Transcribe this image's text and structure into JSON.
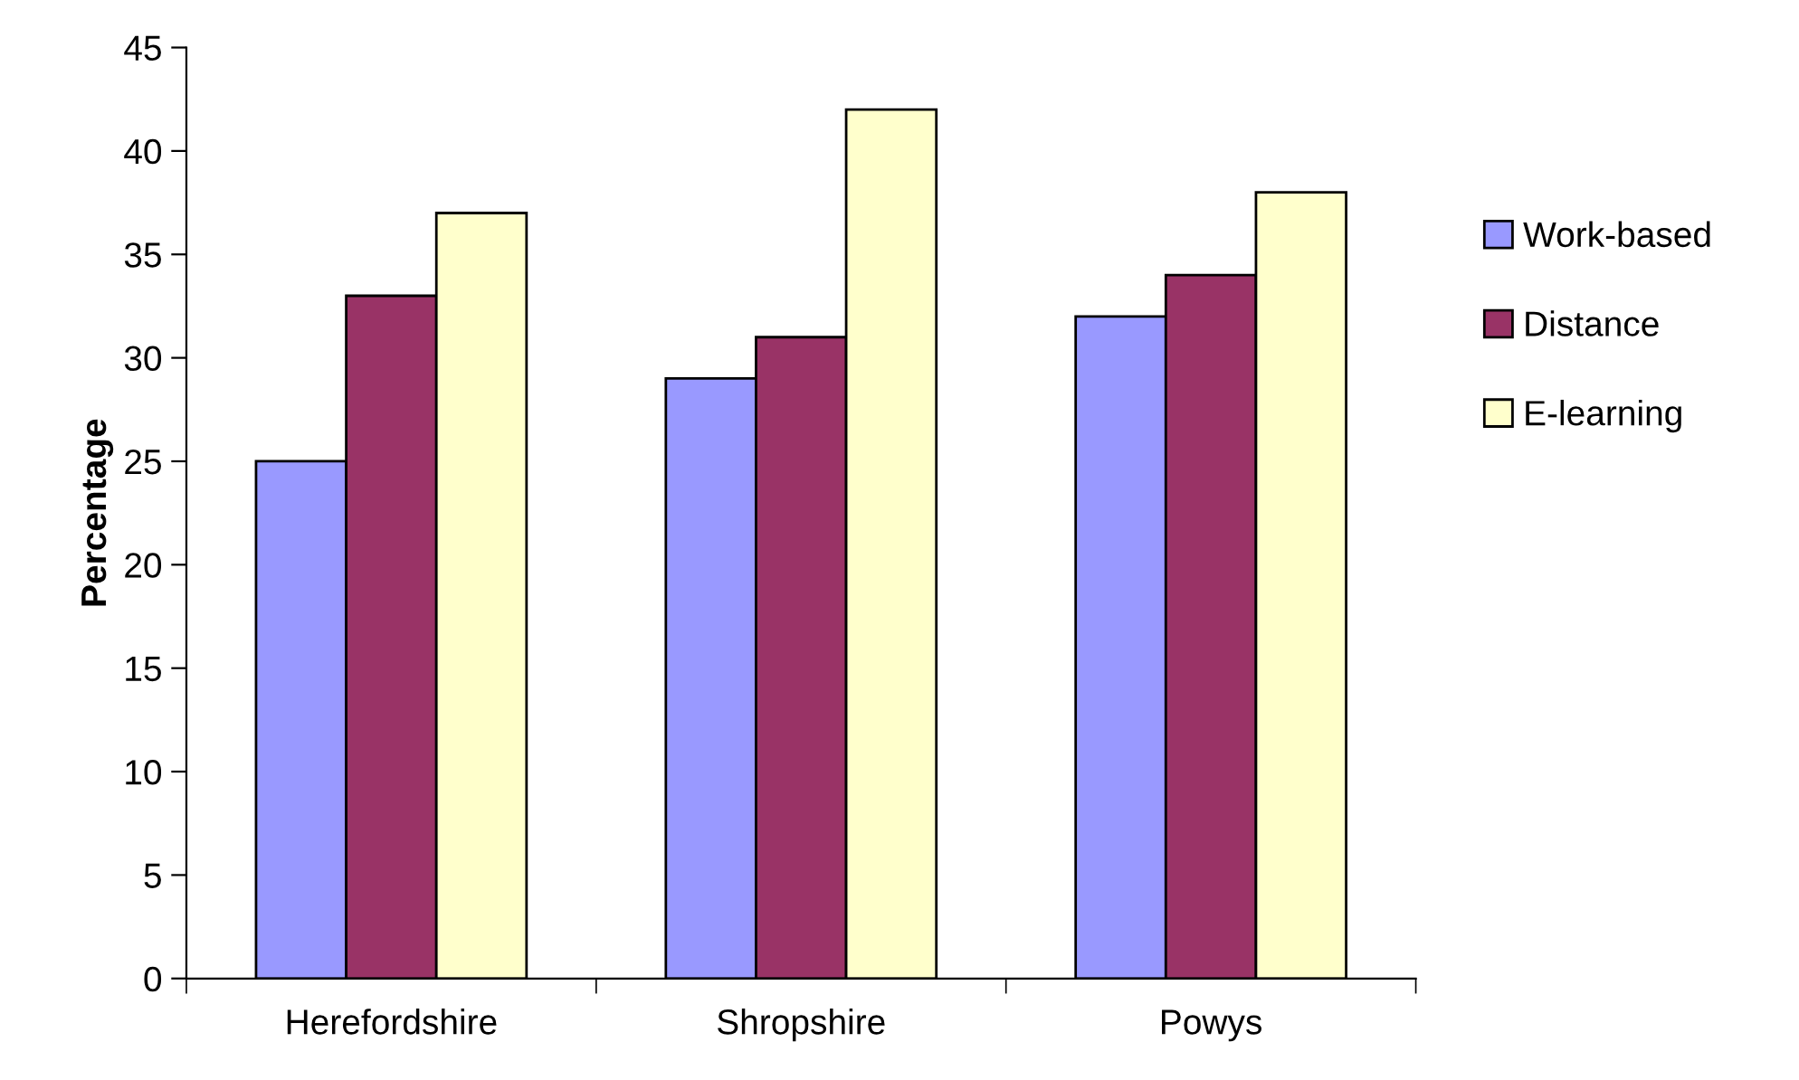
{
  "chart_data": {
    "type": "bar",
    "ylabel": "Percentage",
    "categories": [
      "Herefordshire",
      "Shropshire",
      "Powys"
    ],
    "series": [
      {
        "name": "Work-based",
        "color": "#9999ff",
        "values": [
          25,
          29,
          32
        ]
      },
      {
        "name": "Distance",
        "color": "#993366",
        "values": [
          33,
          31,
          34
        ]
      },
      {
        "name": "E-learning",
        "color": "#ffffcc",
        "values": [
          37,
          42,
          38
        ]
      }
    ],
    "ylim": [
      0,
      45
    ],
    "yticks": [
      0,
      5,
      10,
      15,
      20,
      25,
      30,
      35,
      40,
      45
    ],
    "grid": false,
    "legend": "right"
  }
}
